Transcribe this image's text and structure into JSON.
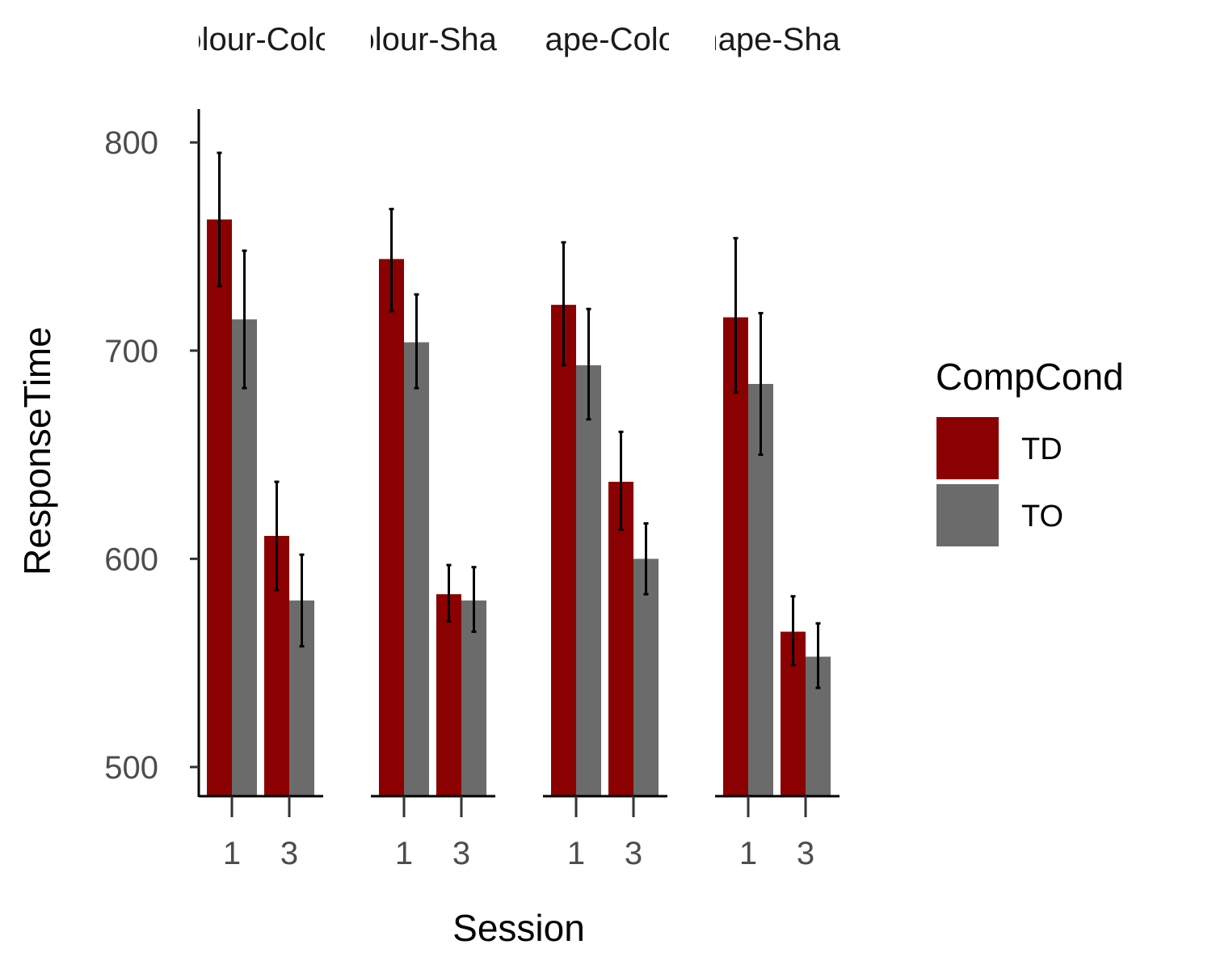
{
  "chart_data": {
    "type": "bar",
    "facets": [
      {
        "label": "Colour-Colour",
        "visible_label": "lour-Colo"
      },
      {
        "label": "Colour-Shape",
        "visible_label": "lour-Sha"
      },
      {
        "label": "Shape-Colour",
        "visible_label": "ape-Colo"
      },
      {
        "label": "Shape-Shape",
        "visible_label": "ape-Sha"
      }
    ],
    "categories": [
      "1",
      "3"
    ],
    "series": [
      {
        "name": "TD",
        "color": "#8B0000"
      },
      {
        "name": "TO",
        "color": "#6B6B6B"
      }
    ],
    "values": [
      {
        "facet": 0,
        "session": "1",
        "TD": {
          "mean": 763,
          "lo": 731,
          "hi": 795
        },
        "TO": {
          "mean": 715,
          "lo": 682,
          "hi": 748
        }
      },
      {
        "facet": 0,
        "session": "3",
        "TD": {
          "mean": 611,
          "lo": 585,
          "hi": 637
        },
        "TO": {
          "mean": 580,
          "lo": 558,
          "hi": 602
        }
      },
      {
        "facet": 1,
        "session": "1",
        "TD": {
          "mean": 744,
          "lo": 719,
          "hi": 768
        },
        "TO": {
          "mean": 704,
          "lo": 682,
          "hi": 727
        }
      },
      {
        "facet": 1,
        "session": "3",
        "TD": {
          "mean": 583,
          "lo": 570,
          "hi": 597
        },
        "TO": {
          "mean": 580,
          "lo": 565,
          "hi": 596
        }
      },
      {
        "facet": 2,
        "session": "1",
        "TD": {
          "mean": 722,
          "lo": 693,
          "hi": 752
        },
        "TO": {
          "mean": 693,
          "lo": 667,
          "hi": 720
        }
      },
      {
        "facet": 2,
        "session": "3",
        "TD": {
          "mean": 637,
          "lo": 614,
          "hi": 661
        },
        "TO": {
          "mean": 600,
          "lo": 583,
          "hi": 617
        }
      },
      {
        "facet": 3,
        "session": "1",
        "TD": {
          "mean": 716,
          "lo": 680,
          "hi": 754
        },
        "TO": {
          "mean": 684,
          "lo": 650,
          "hi": 718
        }
      },
      {
        "facet": 3,
        "session": "3",
        "TD": {
          "mean": 565,
          "lo": 549,
          "hi": 582
        },
        "TO": {
          "mean": 553,
          "lo": 538,
          "hi": 569
        }
      }
    ],
    "xlabel": "Session",
    "ylabel": "ResponseTime",
    "ylim": [
      486,
      816
    ],
    "yticks": [
      500,
      600,
      700,
      800
    ],
    "legend": {
      "title": "CompCond",
      "position": "right"
    },
    "grid": false,
    "error_bars": true
  }
}
